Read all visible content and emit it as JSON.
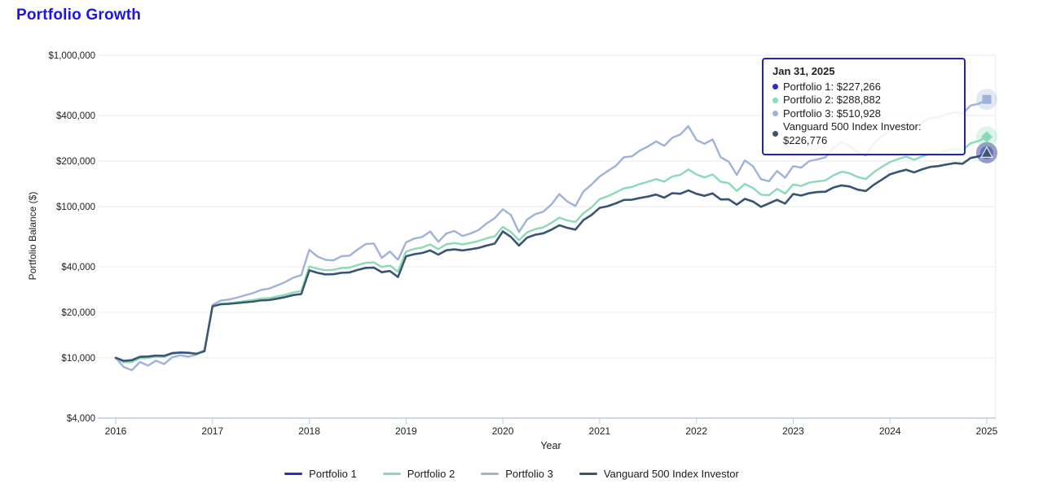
{
  "title": "Portfolio Growth",
  "title_color": "#1c16e0",
  "tooltip": {
    "date": "Jan 31, 2025",
    "rows": [
      {
        "label": "Portfolio 1",
        "value": "$227,266",
        "text": "Portfolio 1: $227,266",
        "color": "#2d2bd3"
      },
      {
        "label": "Portfolio 2",
        "value": "$288,882",
        "text": "Portfolio 2: $288,882",
        "color": "#8bdab7"
      },
      {
        "label": "Portfolio 3",
        "value": "$510,928",
        "text": "Portfolio 3: $510,928",
        "color": "#9fb2da"
      },
      {
        "label": "Vanguard 500 Index Investor",
        "value": "$226,776",
        "text": "Vanguard 500 Index Investor: $226,776",
        "color": "#3a566b"
      }
    ]
  },
  "legend": {
    "items": [
      {
        "label": "Portfolio 1"
      },
      {
        "label": "Portfolio 2"
      },
      {
        "label": "Portfolio 3"
      },
      {
        "label": "Vanguard 500 Index Investor"
      }
    ]
  },
  "chart_data": {
    "type": "line",
    "title": "Portfolio Growth",
    "xlabel": "Year",
    "ylabel": "Portfolio Balance ($)",
    "y_scale": "log",
    "grid": true,
    "x_months_start": "2016-01",
    "x_months_end": "2025-01",
    "x_ticks": [
      2016,
      2017,
      2018,
      2019,
      2020,
      2021,
      2022,
      2023,
      2024,
      2025
    ],
    "y_ticks": [
      {
        "label": "$1,000,000",
        "value": 1000000
      },
      {
        "label": "$400,000",
        "value": 400000
      },
      {
        "label": "$200,000",
        "value": 200000
      },
      {
        "label": "$100,000",
        "value": 100000
      },
      {
        "label": "$40,000",
        "value": 40000
      },
      {
        "label": "$20,000",
        "value": 20000
      },
      {
        "label": "$10,000",
        "value": 10000
      },
      {
        "label": "$4,000",
        "value": 4000
      }
    ],
    "legend_position": "bottom",
    "series": [
      {
        "name": "Portfolio 1",
        "color": "#2d2bd3",
        "marker": "circle",
        "final_value": 227266,
        "values": [
          10020,
          9570,
          9670,
          10170,
          10220,
          10370,
          10320,
          10770,
          10870,
          10820,
          10670,
          11070,
          21940,
          22650,
          22800,
          23050,
          23350,
          23600,
          24050,
          24150,
          24650,
          25250,
          26050,
          26450,
          37980,
          36570,
          35670,
          35770,
          36570,
          36770,
          38180,
          39380,
          39580,
          36870,
          37580,
          34270,
          47000,
          48500,
          49400,
          51400,
          48200,
          51500,
          52200,
          51400,
          52300,
          53400,
          55310,
          57020,
          68640,
          63130,
          55310,
          62430,
          65230,
          66640,
          70340,
          75350,
          72450,
          70540,
          81670,
          88180,
          98200,
          100710,
          105210,
          110720,
          111220,
          114230,
          116730,
          120240,
          114730,
          122750,
          121740,
          128060,
          121550,
          117940,
          122340,
          111620,
          111820,
          103110,
          112630,
          108220,
          99700,
          105210,
          110920,
          104710,
          121240,
          118440,
          122750,
          124950,
          125550,
          133870,
          138280,
          135870,
          129560,
          126850,
          139580,
          151000,
          163530,
          169940,
          175350,
          168440,
          176750,
          183170,
          185470,
          189980,
          193990,
          192180,
          209820,
          214830,
          227266
        ]
      },
      {
        "name": "Portfolio 2",
        "color": "#8bdab7",
        "marker": "diamond",
        "final_value": 288882,
        "values": [
          10000,
          9350,
          9400,
          9950,
          10000,
          10200,
          10150,
          10650,
          10800,
          10750,
          10700,
          11150,
          22000,
          22800,
          23000,
          23350,
          23750,
          24100,
          24650,
          24850,
          25450,
          26150,
          27100,
          27650,
          40200,
          38900,
          38000,
          38200,
          39200,
          39500,
          41100,
          42500,
          42800,
          39900,
          40800,
          37200,
          50500,
          52500,
          53700,
          56200,
          52300,
          56400,
          57400,
          56300,
          57600,
          59200,
          61800,
          63600,
          73500,
          68000,
          60000,
          67500,
          71000,
          72800,
          78000,
          84500,
          81000,
          79000,
          90500,
          99000,
          112000,
          117000,
          124000,
          132000,
          135000,
          141000,
          146000,
          152000,
          146000,
          158000,
          162000,
          176000,
          163000,
          156000,
          163000,
          146000,
          143000,
          127000,
          141000,
          133000,
          120000,
          119000,
          131000,
          122000,
          140000,
          137000,
          144000,
          147000,
          149000,
          161000,
          170000,
          166000,
          157000,
          152000,
          169000,
          183000,
          197000,
          206000,
          214000,
          204000,
          215000,
          224000,
          227000,
          234000,
          241000,
          237000,
          262000,
          272000,
          288882
        ]
      },
      {
        "name": "Portfolio 3",
        "color": "#9fb2da",
        "marker": "square",
        "final_value": 510928,
        "values": [
          10000,
          8700,
          8300,
          9400,
          8900,
          9600,
          9100,
          10100,
          10400,
          10200,
          10500,
          11300,
          22400,
          23900,
          24300,
          25000,
          25900,
          26800,
          28100,
          28700,
          30100,
          31700,
          33900,
          35200,
          51900,
          46800,
          44500,
          44100,
          47000,
          47400,
          52100,
          56500,
          57100,
          45800,
          50500,
          44500,
          58000,
          61500,
          63000,
          68500,
          58500,
          66500,
          69000,
          64000,
          66500,
          70000,
          77500,
          84000,
          96000,
          88000,
          68000,
          82000,
          89000,
          92500,
          103000,
          121000,
          108000,
          101000,
          126000,
          140000,
          158000,
          172000,
          186000,
          212000,
          215000,
          235000,
          250000,
          270000,
          252000,
          285000,
          300000,
          340000,
          276000,
          260000,
          278000,
          212000,
          198000,
          162000,
          202000,
          185000,
          152000,
          147000,
          172000,
          155000,
          185000,
          181000,
          200000,
          205000,
          212000,
          245000,
          268000,
          252000,
          228000,
          218000,
          262000,
          292000,
          318000,
          340000,
          360000,
          330000,
          360000,
          386000,
          390000,
          406000,
          421000,
          411000,
          466000,
          478000,
          510928
        ]
      },
      {
        "name": "Vanguard 500 Index Investor",
        "color": "#3a566b",
        "marker": "triangle",
        "final_value": 226776,
        "values": [
          10000,
          9550,
          9650,
          10150,
          10200,
          10350,
          10300,
          10750,
          10850,
          10800,
          10650,
          11050,
          21900,
          22600,
          22750,
          23000,
          23300,
          23550,
          24000,
          24100,
          24600,
          25200,
          26000,
          26400,
          37900,
          36500,
          35600,
          35700,
          36500,
          36700,
          38100,
          39300,
          39500,
          36800,
          37500,
          34200,
          46900,
          48400,
          49300,
          51300,
          48100,
          51400,
          52100,
          51300,
          52200,
          53300,
          55200,
          56900,
          68500,
          63000,
          55200,
          62300,
          65100,
          66500,
          70200,
          75200,
          72300,
          70400,
          81500,
          88000,
          98000,
          100500,
          105000,
          110500,
          111000,
          114000,
          116500,
          120000,
          114500,
          122500,
          121500,
          127800,
          121300,
          117700,
          122100,
          111400,
          111600,
          102900,
          112400,
          108000,
          99500,
          105000,
          110700,
          104500,
          121000,
          118200,
          122500,
          124700,
          125300,
          133600,
          138000,
          135600,
          129300,
          126600,
          139300,
          150700,
          163200,
          169600,
          175000,
          168100,
          176400,
          182800,
          185100,
          189600,
          193600,
          191800,
          209400,
          214400,
          226776
        ]
      }
    ]
  }
}
